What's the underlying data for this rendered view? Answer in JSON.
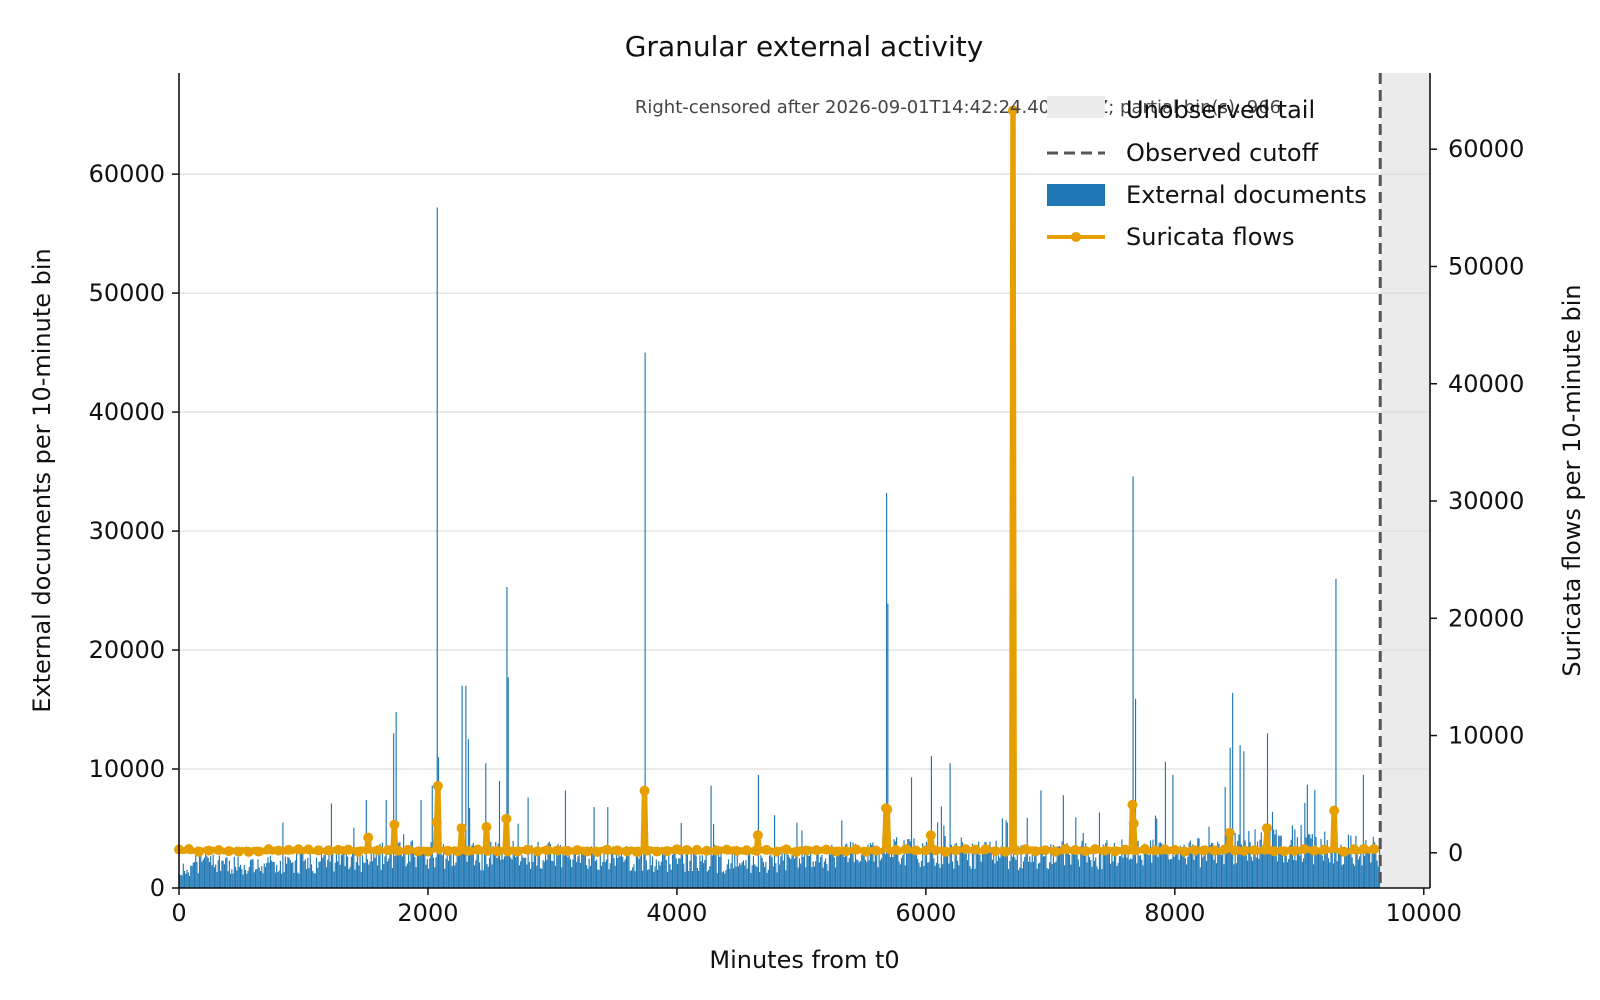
{
  "chart_data": {
    "type": "bar+line",
    "title": "Granular external activity",
    "note": "Right-censored after 2026-09-01T14:42:24.404148Z; partial bin(s): 966",
    "xlabel": "Minutes from t0",
    "ylabel_left": "External documents per 10-minute bin",
    "ylabel_right": "Suricata flows per 10-minute bin",
    "xlim": [
      0,
      10050
    ],
    "ylim_left": [
      0,
      68500
    ],
    "ylim_right": [
      -3000,
      66500
    ],
    "x_ticks": [
      0,
      2000,
      4000,
      6000,
      8000,
      10000
    ],
    "y_ticks_left": [
      0,
      10000,
      20000,
      30000,
      40000,
      50000,
      60000
    ],
    "y_ticks_right": [
      0,
      10000,
      20000,
      30000,
      40000,
      50000,
      60000
    ],
    "grid": "horizontal",
    "legend": "top-right",
    "cutoff_minute": 9650,
    "bin_minutes": 10,
    "colors": {
      "documents": "#1f77b4",
      "flows": "#e69f00",
      "cutoff": "#555555",
      "tail": "#ebebeb",
      "grid": "#dddddd"
    },
    "series": [
      {
        "name": "External documents",
        "kind": "bar",
        "baseline": [
          [
            0,
            1500
          ],
          [
            200,
            3000
          ],
          [
            600,
            2200
          ],
          [
            1000,
            2600
          ],
          [
            1500,
            3000
          ],
          [
            2000,
            3500
          ],
          [
            2600,
            3200
          ],
          [
            3000,
            3300
          ],
          [
            3500,
            3000
          ],
          [
            4000,
            2800
          ],
          [
            4500,
            2600
          ],
          [
            5000,
            2900
          ],
          [
            5500,
            3500
          ],
          [
            5800,
            4000
          ],
          [
            6200,
            3600
          ],
          [
            6700,
            3200
          ],
          [
            7200,
            3300
          ],
          [
            7800,
            3500
          ],
          [
            8200,
            3700
          ],
          [
            8700,
            4200
          ],
          [
            9000,
            4500
          ],
          [
            9300,
            4000
          ],
          [
            9650,
            3800
          ]
        ],
        "peaks": [
          [
            830,
            5500
          ],
          [
            1220,
            7100
          ],
          [
            1500,
            7400
          ],
          [
            1660,
            7400
          ],
          [
            1720,
            13000
          ],
          [
            1740,
            14800
          ],
          [
            1940,
            7400
          ],
          [
            2030,
            8600
          ],
          [
            2070,
            57200
          ],
          [
            2080,
            11000
          ],
          [
            2270,
            17000
          ],
          [
            2300,
            17000
          ],
          [
            2320,
            12500
          ],
          [
            2460,
            10500
          ],
          [
            2570,
            9000
          ],
          [
            2630,
            25300
          ],
          [
            2640,
            17700
          ],
          [
            2800,
            7600
          ],
          [
            3100,
            8200
          ],
          [
            3330,
            6800
          ],
          [
            3440,
            6800
          ],
          [
            3740,
            45000
          ],
          [
            4270,
            8600
          ],
          [
            4650,
            9500
          ],
          [
            5680,
            33200
          ],
          [
            5690,
            23900
          ],
          [
            5880,
            9300
          ],
          [
            6040,
            11100
          ],
          [
            6190,
            10500
          ],
          [
            6920,
            8200
          ],
          [
            7100,
            7800
          ],
          [
            7660,
            34600
          ],
          [
            7680,
            15900
          ],
          [
            7920,
            10600
          ],
          [
            7980,
            9500
          ],
          [
            8400,
            8500
          ],
          [
            8440,
            11800
          ],
          [
            8460,
            16400
          ],
          [
            8520,
            12000
          ],
          [
            8550,
            11500
          ],
          [
            8740,
            13000
          ],
          [
            9290,
            26000
          ],
          [
            9510,
            9500
          ]
        ]
      },
      {
        "name": "Suricata flows",
        "kind": "line",
        "baseline": 200,
        "peaks": [
          [
            1520,
            1300
          ],
          [
            1730,
            2400
          ],
          [
            2070,
            2600
          ],
          [
            2080,
            5700
          ],
          [
            2270,
            2100
          ],
          [
            2470,
            2200
          ],
          [
            2630,
            2900
          ],
          [
            3740,
            5300
          ],
          [
            4650,
            1500
          ],
          [
            5680,
            3800
          ],
          [
            5690,
            3700
          ],
          [
            6040,
            1500
          ],
          [
            6700,
            63300
          ],
          [
            7660,
            4100
          ],
          [
            7670,
            2500
          ],
          [
            8440,
            1700
          ],
          [
            8740,
            2100
          ],
          [
            9280,
            3600
          ]
        ]
      }
    ],
    "legend_entries": [
      {
        "label": "Unobserved tail",
        "kind": "patch",
        "color_key": "tail"
      },
      {
        "label": "Observed cutoff",
        "kind": "dashed",
        "color_key": "cutoff"
      },
      {
        "label": "External documents",
        "kind": "patch",
        "color_key": "documents"
      },
      {
        "label": "Suricata flows",
        "kind": "line-marker",
        "color_key": "flows"
      }
    ]
  }
}
